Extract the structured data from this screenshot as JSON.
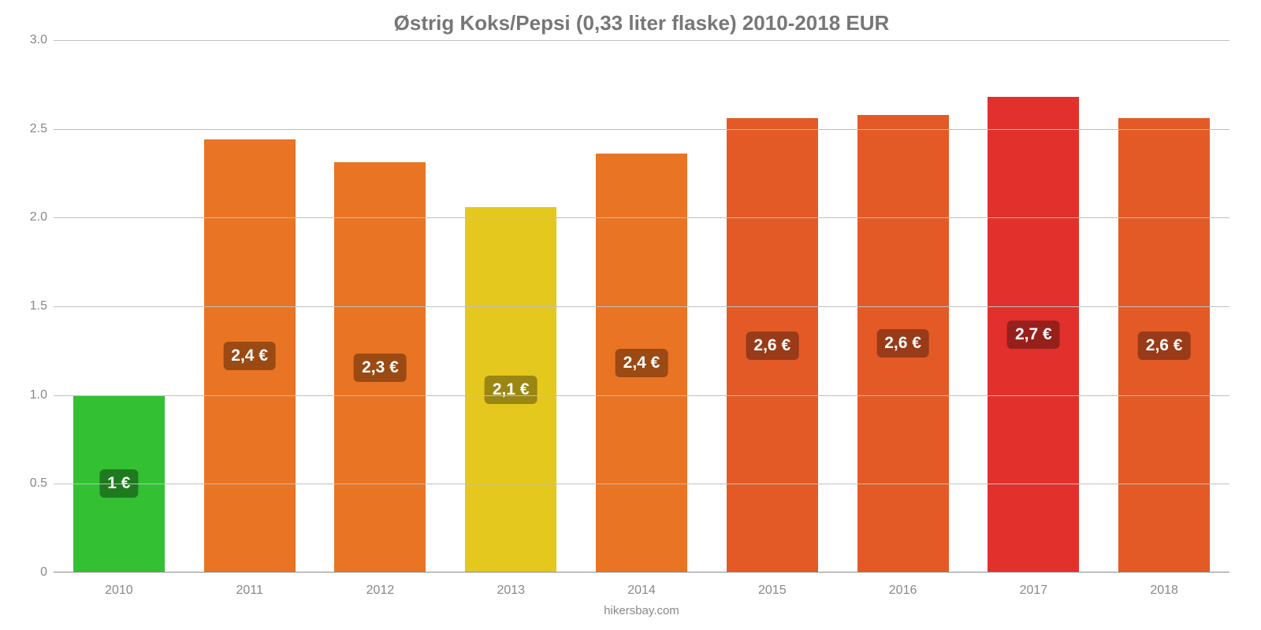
{
  "chart": {
    "type": "bar",
    "title": "Østrig Koks/Pepsi (0,33 liter flaske) 2010-2018 EUR",
    "title_fontsize": 26,
    "title_color": "#777777",
    "attribution": "hikersbay.com",
    "attribution_fontsize": 15,
    "attribution_color": "#888888",
    "background_color": "#ffffff",
    "grid_color": "#bfbfbf",
    "grid_width": 1,
    "baseline_color": "#888888",
    "baseline_width": 1,
    "tick_label_color": "#888888",
    "tick_fontsize": 16,
    "ylim": [
      0,
      3.0
    ],
    "ytick_step": 0.5,
    "yticks": [
      "0",
      "0.5",
      "1.0",
      "1.5",
      "2.0",
      "2.5",
      "3.0"
    ],
    "categories": [
      "2010",
      "2011",
      "2012",
      "2013",
      "2014",
      "2015",
      "2016",
      "2017",
      "2018"
    ],
    "bar_width_pct": 70,
    "bars": [
      {
        "value": 1.0,
        "label": "1 €",
        "color": "#33c133",
        "label_bg": "#1f7a1f"
      },
      {
        "value": 2.44,
        "label": "2,4 €",
        "color": "#e87424",
        "label_bg": "#9a4a12"
      },
      {
        "value": 2.31,
        "label": "2,3 €",
        "color": "#e87424",
        "label_bg": "#9a4a12"
      },
      {
        "value": 2.06,
        "label": "2,1 €",
        "color": "#e4c81e",
        "label_bg": "#9a8612"
      },
      {
        "value": 2.36,
        "label": "2,4 €",
        "color": "#e87424",
        "label_bg": "#9a4a12"
      },
      {
        "value": 2.56,
        "label": "2,6 €",
        "color": "#e45a27",
        "label_bg": "#993a18"
      },
      {
        "value": 2.58,
        "label": "2,6 €",
        "color": "#e45a27",
        "label_bg": "#993a18"
      },
      {
        "value": 2.68,
        "label": "2,7 €",
        "color": "#e2312c",
        "label_bg": "#97201c"
      },
      {
        "value": 2.56,
        "label": "2,6 €",
        "color": "#e45a27",
        "label_bg": "#993a18"
      }
    ],
    "bar_label_fontsize": 21,
    "bar_label_color": "#ffffff"
  }
}
